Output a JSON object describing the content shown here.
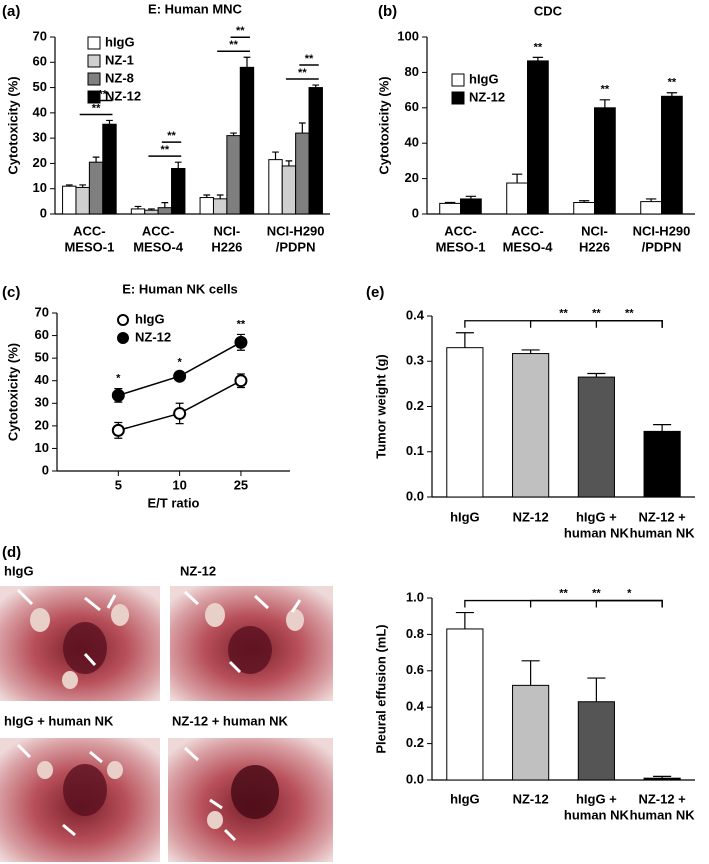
{
  "panel_labels": [
    "(a)",
    "(b)",
    "(c)",
    "(d)",
    "(e)"
  ],
  "photos": {
    "captions": [
      "hIgG",
      "NZ-12",
      "hIgG + human NK",
      "NZ-12 + human NK"
    ]
  },
  "chart_data": [
    {
      "type": "bar",
      "title": "E: Human MNC",
      "y_label": "Cytotoxicity (%)",
      "categories": [
        [
          "ACC-",
          "MESO-1"
        ],
        [
          "ACC-",
          "MESO-4"
        ],
        [
          "NCI-",
          "H226"
        ],
        [
          "NCI-H290",
          "/PDPN"
        ]
      ],
      "series": [
        {
          "name": "hIgG",
          "color": "#ffffff",
          "values": [
            11,
            2,
            6.5,
            21.5
          ],
          "errors": [
            0.5,
            1,
            1,
            3
          ]
        },
        {
          "name": "NZ-1",
          "color": "#cfcfcf",
          "values": [
            10.5,
            1.5,
            6,
            19
          ],
          "errors": [
            1,
            0.5,
            1.5,
            2
          ]
        },
        {
          "name": "NZ-8",
          "color": "#7f7f7f",
          "values": [
            20.5,
            2.5,
            31,
            32
          ],
          "errors": [
            2,
            2,
            1,
            4
          ]
        },
        {
          "name": "NZ-12",
          "color": "#000000",
          "values": [
            35.5,
            18,
            58,
            50
          ],
          "errors": [
            1.5,
            2.5,
            4,
            1
          ]
        }
      ],
      "ylim": [
        0,
        70
      ],
      "yticks": [
        0,
        10,
        20,
        30,
        40,
        50,
        60,
        70
      ],
      "legend": "upper left",
      "annotations": [
        "**",
        "**",
        "**",
        "**",
        "**",
        "**",
        "**",
        "**"
      ]
    },
    {
      "type": "bar",
      "title": "CDC",
      "y_label": "Cytotoxicity (%)",
      "categories": [
        [
          "ACC-",
          "MESO-1"
        ],
        [
          "ACC-",
          "MESO-4"
        ],
        [
          "NCI-",
          "H226"
        ],
        [
          "NCI-H290",
          "/PDPN"
        ]
      ],
      "series": [
        {
          "name": "hIgG",
          "color": "#ffffff",
          "values": [
            6,
            17.5,
            6.5,
            7
          ],
          "errors": [
            0.5,
            5,
            1,
            1.5
          ]
        },
        {
          "name": "NZ-12",
          "color": "#000000",
          "values": [
            8.5,
            86.5,
            60,
            66.5
          ],
          "errors": [
            1.5,
            2,
            4.5,
            2
          ]
        }
      ],
      "ylim": [
        0,
        100
      ],
      "yticks": [
        0,
        20,
        40,
        60,
        80,
        100
      ],
      "legend": "upper left",
      "annotations": [
        "**",
        "**",
        "**"
      ]
    },
    {
      "type": "line",
      "title": "E: Human NK cells",
      "y_label": "Cytotoxicity (%)",
      "x_label": "E/T ratio",
      "categories": [
        [
          "5"
        ],
        [
          "10"
        ],
        [
          "25"
        ]
      ],
      "series": [
        {
          "name": "hIgG",
          "color": "#ffffff",
          "values": [
            18,
            25.5,
            40
          ],
          "errors": [
            3.5,
            4.5,
            3
          ]
        },
        {
          "name": "NZ-12",
          "color": "#000000",
          "values": [
            33.5,
            42,
            57
          ],
          "errors": [
            3,
            1.5,
            3.5
          ]
        }
      ],
      "ylim": [
        0,
        70
      ],
      "yticks": [
        0,
        10,
        20,
        30,
        40,
        50,
        60,
        70
      ],
      "legend": "upper left",
      "annotations": [
        "*",
        "*",
        "**"
      ]
    },
    {
      "type": "bar",
      "y_label": "Tumor weight (g)",
      "categories": [
        [
          "hIgG"
        ],
        [
          "NZ-12"
        ],
        [
          "hIgG +",
          "human NK"
        ],
        [
          "NZ-12 +",
          "human NK"
        ]
      ],
      "values": [
        0.33,
        0.317,
        0.265,
        0.145
      ],
      "errors": [
        0.033,
        0.008,
        0.008,
        0.015
      ],
      "colors": [
        "#ffffff",
        "#c0c0c0",
        "#555555",
        "#000000"
      ],
      "ylim": [
        0,
        0.4
      ],
      "yticks": [
        {
          "value": 0,
          "label": "0.0"
        },
        0.1,
        0.2,
        0.3,
        0.4
      ],
      "annotations": [
        "**",
        "**",
        "**"
      ]
    },
    {
      "type": "bar",
      "y_label": "Pleural effusion (mL)",
      "categories": [
        [
          "hIgG"
        ],
        [
          "NZ-12"
        ],
        [
          "hIgG +",
          "human NK"
        ],
        [
          "NZ-12 +",
          "human NK"
        ]
      ],
      "values": [
        0.83,
        0.52,
        0.43,
        0.01
      ],
      "errors": [
        0.09,
        0.135,
        0.13,
        0.01
      ],
      "colors": [
        "#ffffff",
        "#c0c0c0",
        "#555555",
        "#000000"
      ],
      "ylim": [
        0,
        1
      ],
      "yticks": [
        {
          "value": 0,
          "label": "0.0"
        },
        0.2,
        0.4,
        0.6,
        0.8,
        {
          "value": 1,
          "label": "1.0"
        }
      ],
      "annotations": [
        "**",
        "**",
        "*"
      ]
    }
  ]
}
